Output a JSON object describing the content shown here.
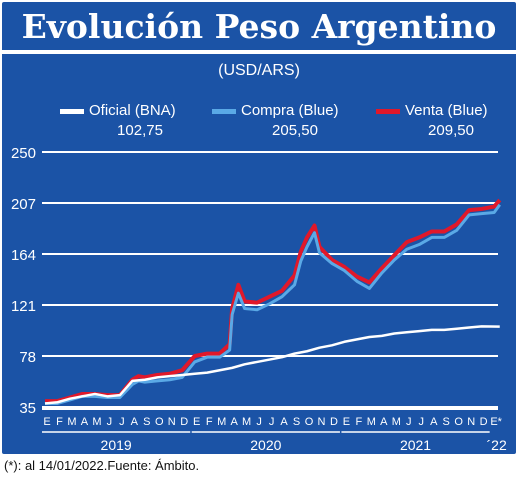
{
  "title": "Evolución Peso Argentino",
  "unit": "(USD/ARS)",
  "legend": [
    {
      "label": "Oficial (BNA)",
      "value": "102,75",
      "color": "#ffffff"
    },
    {
      "label": "Compra (Blue)",
      "value": "205,50",
      "color": "#5aa9e6"
    },
    {
      "label": "Venta (Blue)",
      "value": "209,50",
      "color": "#e0182a"
    }
  ],
  "footnote": "(*): al 14/01/2022.Fuente: Ámbito.",
  "colors": {
    "background": "#1b53a6",
    "grid": "#ffffff",
    "oficial": "#ffffff",
    "compra": "#5aa9e6",
    "venta": "#e0182a"
  },
  "chart_data": {
    "type": "line",
    "title": "Evolución Peso Argentino",
    "ylabel": "(USD/ARS)",
    "ylim": [
      35,
      250
    ],
    "yticks": [
      250,
      207,
      164,
      121,
      78,
      35
    ],
    "grid": true,
    "legend_position": "top",
    "month_labels": [
      "E",
      "F",
      "M",
      "A",
      "M",
      "J",
      "J",
      "A",
      "S",
      "O",
      "N",
      "D",
      "E",
      "F",
      "M",
      "A",
      "M",
      "J",
      "J",
      "A",
      "S",
      "O",
      "N",
      "D",
      "E",
      "F",
      "M",
      "A",
      "M",
      "J",
      "J",
      "A",
      "S",
      "O",
      "N",
      "D",
      "E*"
    ],
    "year_labels": [
      "2019",
      "2020",
      "2021",
      "´22"
    ],
    "x_unit": "months since Jan 2019",
    "series": [
      {
        "name": "Oficial (BNA)",
        "color": "#ffffff",
        "x": [
          0,
          1,
          2,
          3,
          4,
          5,
          6,
          7,
          8,
          9,
          10,
          11,
          12,
          13,
          14,
          15,
          16,
          17,
          18,
          19,
          20,
          21,
          22,
          23,
          24,
          25,
          26,
          27,
          28,
          29,
          30,
          31,
          32,
          33,
          34,
          35,
          36.45
        ],
        "y": [
          38,
          39,
          42,
          44,
          46,
          44,
          45,
          57,
          58,
          60,
          61,
          62,
          63,
          64,
          66,
          68,
          71,
          73,
          75,
          77,
          80,
          82,
          85,
          87,
          90,
          92,
          94,
          95,
          97,
          98,
          99,
          100,
          100,
          101,
          102,
          103,
          102.75
        ]
      },
      {
        "name": "Compra (Blue)",
        "color": "#5aa9e6",
        "x": [
          0,
          1,
          2,
          3,
          4,
          5,
          6,
          7,
          7.5,
          8,
          9,
          10,
          11,
          12,
          13,
          14,
          14.8,
          15,
          15.5,
          16,
          17,
          18,
          19,
          20,
          20.5,
          21,
          21.6,
          22,
          23,
          24,
          25,
          26,
          27,
          28,
          29,
          30,
          31,
          32,
          33,
          34,
          35,
          36,
          36.45
        ],
        "y": [
          38,
          38,
          41,
          44,
          44,
          43,
          43,
          54,
          57,
          56,
          57,
          58,
          60,
          73,
          77,
          77,
          83,
          113,
          131,
          118,
          117,
          122,
          128,
          138,
          158,
          170,
          182,
          165,
          156,
          150,
          141,
          135,
          148,
          159,
          168,
          172,
          178,
          178,
          184,
          197,
          198,
          199,
          205.5
        ]
      },
      {
        "name": "Venta (Blue)",
        "color": "#e0182a",
        "x": [
          0,
          1,
          2,
          3,
          4,
          5,
          6,
          7,
          7.5,
          8,
          9,
          10,
          11,
          12,
          13,
          14,
          14.8,
          15,
          15.5,
          16,
          17,
          18,
          19,
          20,
          20.5,
          21,
          21.6,
          22,
          23,
          24,
          25,
          26,
          27,
          28,
          29,
          30,
          31,
          32,
          33,
          34,
          35,
          36,
          36.45
        ],
        "y": [
          40,
          40,
          43,
          46,
          46,
          45,
          45,
          58,
          61,
          60,
          62,
          63,
          66,
          78,
          80,
          80,
          88,
          118,
          138,
          124,
          123,
          128,
          133,
          146,
          166,
          178,
          188,
          170,
          159,
          153,
          145,
          140,
          152,
          163,
          174,
          178,
          183,
          183,
          189,
          201,
          202,
          204,
          209.5
        ]
      }
    ]
  }
}
